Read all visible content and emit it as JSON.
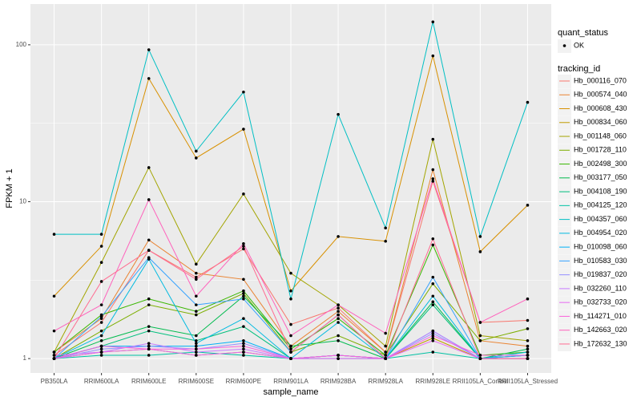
{
  "chart_data": {
    "type": "line",
    "x_label": "sample_name",
    "y_label": "FPKM + 1",
    "log_scale": true,
    "grid": true,
    "legend_position": "right",
    "ylim": [
      0.81,
      182
    ],
    "yticks": [
      1,
      10,
      100
    ],
    "status_legend": {
      "title": "quant_status",
      "labels": [
        "OK"
      ]
    },
    "legend_title": "tracking_id",
    "categories": [
      "PB350LA",
      "RRIM600LA",
      "RRIM600LE",
      "RRIM600SE",
      "RRIM600PE",
      "RRIM901LA",
      "RRIM928BA",
      "RRIM928LA",
      "RRIM928LE",
      "RRII105LA_Control",
      "RRII105LA_Stressed"
    ],
    "series": [
      {
        "name": "Hb_000116_070",
        "color": "#F8766D",
        "values": [
          1.05,
          1.7,
          4.9,
          3.3,
          5.0,
          1.65,
          2.1,
          1.1,
          13.5,
          1.7,
          1.75
        ]
      },
      {
        "name": "Hb_000574_040",
        "color": "#EA8331",
        "values": [
          1.1,
          1.8,
          5.7,
          3.5,
          3.2,
          1.2,
          2.0,
          1.1,
          16,
          1.3,
          1.2
        ]
      },
      {
        "name": "Hb_000608_430",
        "color": "#D89000",
        "values": [
          2.5,
          5.2,
          61,
          19,
          29,
          2.7,
          6.0,
          5.6,
          85,
          4.8,
          9.5
        ]
      },
      {
        "name": "Hb_000834_060",
        "color": "#C09B00",
        "values": [
          1.0,
          1.1,
          1.15,
          1.05,
          1.1,
          1.0,
          1.05,
          1.0,
          1.35,
          1.0,
          1.05
        ]
      },
      {
        "name": "Hb_001148_060",
        "color": "#A3A500",
        "values": [
          1.1,
          4.1,
          16.5,
          4.0,
          11.2,
          3.5,
          2.2,
          1.2,
          25,
          1.4,
          1.3
        ]
      },
      {
        "name": "Hb_001728_110",
        "color": "#7CAE00",
        "values": [
          1.0,
          1.5,
          2.2,
          1.9,
          2.6,
          1.1,
          1.4,
          1.05,
          3.0,
          1.3,
          1.55
        ]
      },
      {
        "name": "Hb_002498_300",
        "color": "#39B600",
        "values": [
          1.1,
          1.9,
          2.4,
          2.0,
          2.7,
          1.15,
          1.8,
          1.05,
          5.3,
          1.05,
          1.1
        ]
      },
      {
        "name": "Hb_003177_050",
        "color": "#00BB4E",
        "values": [
          1.0,
          1.3,
          1.6,
          1.4,
          2.5,
          1.2,
          1.3,
          1.0,
          2.3,
          1.0,
          1.15
        ]
      },
      {
        "name": "Hb_004108_190",
        "color": "#00BF7D",
        "values": [
          1.0,
          1.2,
          1.5,
          1.3,
          1.6,
          1.0,
          1.05,
          1.0,
          2.2,
          1.0,
          1.05
        ]
      },
      {
        "name": "Hb_004125_120",
        "color": "#00C1A3",
        "values": [
          1.0,
          1.05,
          1.05,
          1.1,
          1.05,
          1.0,
          1.0,
          1.0,
          1.1,
          1.0,
          1.0
        ]
      },
      {
        "name": "Hb_004357_060",
        "color": "#00BFC4",
        "values": [
          6.2,
          6.2,
          93,
          21,
          50,
          2.4,
          36,
          6.8,
          140,
          6.0,
          43
        ]
      },
      {
        "name": "Hb_004954_020",
        "color": "#00BAE0",
        "values": [
          1.0,
          1.4,
          4.3,
          1.25,
          1.8,
          1.0,
          1.7,
          1.0,
          2.5,
          1.0,
          1.1
        ]
      },
      {
        "name": "Hb_010098_060",
        "color": "#00B0F6",
        "values": [
          1.0,
          1.2,
          1.2,
          1.2,
          1.3,
          1.0,
          1.05,
          1.0,
          1.5,
          1.0,
          1.0
        ]
      },
      {
        "name": "Hb_010583_030",
        "color": "#35A2FF",
        "values": [
          1.0,
          1.85,
          4.4,
          2.2,
          2.4,
          1.1,
          1.9,
          1.0,
          3.3,
          1.0,
          1.05
        ]
      },
      {
        "name": "Hb_019837_020",
        "color": "#9590FF",
        "values": [
          1.0,
          1.15,
          1.2,
          1.15,
          1.25,
          1.0,
          1.05,
          1.0,
          1.45,
          1.0,
          1.0
        ]
      },
      {
        "name": "Hb_032260_110",
        "color": "#C77CFF",
        "values": [
          1.05,
          1.1,
          1.25,
          1.1,
          1.15,
          1.0,
          1.05,
          1.0,
          1.5,
          1.0,
          1.0
        ]
      },
      {
        "name": "Hb_032733_020",
        "color": "#E76BF3",
        "values": [
          1.0,
          1.1,
          1.15,
          1.05,
          1.1,
          1.0,
          1.0,
          1.0,
          1.3,
          1.0,
          1.0
        ]
      },
      {
        "name": "Hb_114271_010",
        "color": "#FA62DB",
        "values": [
          1.0,
          1.2,
          1.15,
          1.15,
          1.2,
          1.0,
          1.05,
          1.0,
          1.4,
          1.05,
          1.05
        ]
      },
      {
        "name": "Hb_142663_020",
        "color": "#FF62BC",
        "values": [
          1.5,
          2.2,
          10.3,
          2.5,
          5.4,
          1.4,
          2.2,
          1.45,
          14,
          1.7,
          2.4
        ]
      },
      {
        "name": "Hb_172632_130",
        "color": "#FF6C91",
        "values": [
          1.0,
          3.1,
          4.9,
          3.2,
          5.2,
          1.1,
          1.9,
          1.0,
          5.8,
          1.0,
          1.0
        ]
      }
    ]
  }
}
